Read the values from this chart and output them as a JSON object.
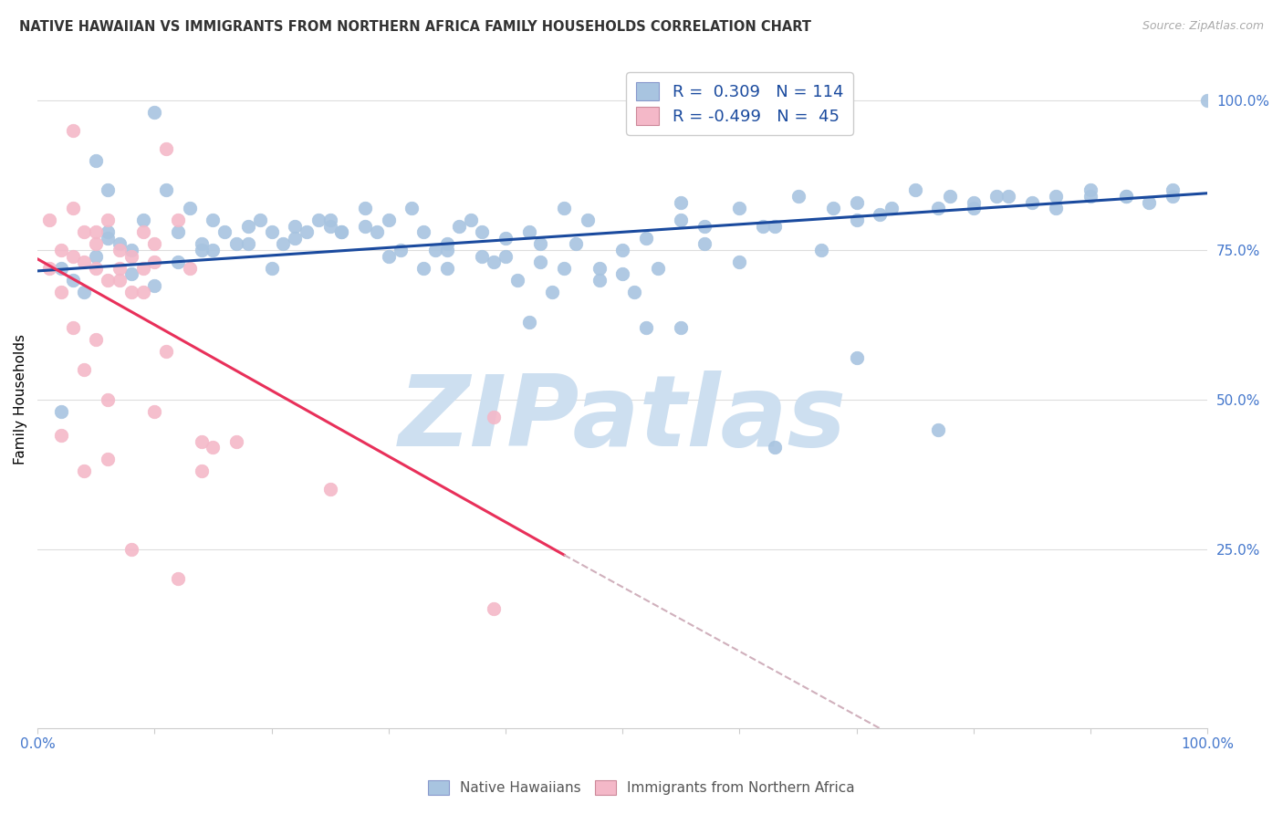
{
  "title": "NATIVE HAWAIIAN VS IMMIGRANTS FROM NORTHERN AFRICA FAMILY HOUSEHOLDS CORRELATION CHART",
  "source": "Source: ZipAtlas.com",
  "ylabel": "Family Households",
  "ytick_positions": [
    0.25,
    0.5,
    0.75,
    1.0
  ],
  "ytick_labels": [
    "25.0%",
    "50.0%",
    "75.0%",
    "100.0%"
  ],
  "xtick_positions": [
    0.0,
    0.1,
    0.2,
    0.3,
    0.4,
    0.5,
    0.6,
    0.7,
    0.8,
    0.9,
    1.0
  ],
  "blue_scatter_x": [
    0.02,
    0.03,
    0.05,
    0.06,
    0.04,
    0.07,
    0.08,
    0.06,
    0.1,
    0.09,
    0.12,
    0.11,
    0.13,
    0.15,
    0.14,
    0.16,
    0.18,
    0.17,
    0.2,
    0.19,
    0.22,
    0.21,
    0.24,
    0.23,
    0.25,
    0.26,
    0.28,
    0.3,
    0.29,
    0.32,
    0.31,
    0.33,
    0.35,
    0.34,
    0.36,
    0.38,
    0.37,
    0.4,
    0.39,
    0.42,
    0.41,
    0.43,
    0.45,
    0.44,
    0.47,
    0.46,
    0.5,
    0.48,
    0.52,
    0.51,
    0.55,
    0.53,
    0.57,
    0.6,
    0.62,
    0.65,
    0.68,
    0.7,
    0.72,
    0.75,
    0.78,
    0.8,
    0.82,
    0.85,
    0.87,
    0.9,
    0.93,
    0.95,
    0.97,
    1.0,
    0.05,
    0.08,
    0.12,
    0.15,
    0.18,
    0.22,
    0.28,
    0.33,
    0.38,
    0.43,
    0.5,
    0.57,
    0.63,
    0.7,
    0.77,
    0.83,
    0.9,
    0.97,
    0.06,
    0.1,
    0.14,
    0.2,
    0.26,
    0.3,
    0.35,
    0.4,
    0.45,
    0.25,
    0.48,
    0.35,
    0.42,
    0.52,
    0.6,
    0.67,
    0.73,
    0.8,
    0.87,
    0.93,
    0.55,
    0.63,
    0.7,
    0.77,
    0.55,
    0.02
  ],
  "blue_scatter_y": [
    0.72,
    0.7,
    0.9,
    0.78,
    0.68,
    0.76,
    0.75,
    0.85,
    0.98,
    0.8,
    0.78,
    0.85,
    0.82,
    0.8,
    0.76,
    0.78,
    0.79,
    0.76,
    0.78,
    0.8,
    0.79,
    0.76,
    0.8,
    0.78,
    0.79,
    0.78,
    0.82,
    0.8,
    0.78,
    0.82,
    0.75,
    0.78,
    0.72,
    0.75,
    0.79,
    0.78,
    0.8,
    0.77,
    0.73,
    0.78,
    0.7,
    0.76,
    0.82,
    0.68,
    0.8,
    0.76,
    0.75,
    0.72,
    0.77,
    0.68,
    0.8,
    0.72,
    0.79,
    0.82,
    0.79,
    0.84,
    0.82,
    0.83,
    0.81,
    0.85,
    0.84,
    0.82,
    0.84,
    0.83,
    0.82,
    0.85,
    0.84,
    0.83,
    0.84,
    1.0,
    0.74,
    0.71,
    0.73,
    0.75,
    0.76,
    0.77,
    0.79,
    0.72,
    0.74,
    0.73,
    0.71,
    0.76,
    0.79,
    0.8,
    0.82,
    0.84,
    0.84,
    0.85,
    0.77,
    0.69,
    0.75,
    0.72,
    0.78,
    0.74,
    0.76,
    0.74,
    0.72,
    0.8,
    0.7,
    0.75,
    0.63,
    0.62,
    0.73,
    0.75,
    0.82,
    0.83,
    0.84,
    0.84,
    0.83,
    0.42,
    0.57,
    0.45,
    0.62,
    0.48
  ],
  "pink_scatter_x": [
    0.01,
    0.01,
    0.02,
    0.02,
    0.03,
    0.03,
    0.04,
    0.04,
    0.05,
    0.05,
    0.06,
    0.06,
    0.07,
    0.07,
    0.08,
    0.08,
    0.09,
    0.09,
    0.1,
    0.1,
    0.11,
    0.12,
    0.13,
    0.03,
    0.05,
    0.07,
    0.09,
    0.11,
    0.14,
    0.04,
    0.06,
    0.15,
    0.17,
    0.39,
    0.02,
    0.08,
    0.12,
    0.04,
    0.06,
    0.1,
    0.14,
    0.05,
    0.39,
    0.25,
    0.03
  ],
  "pink_scatter_y": [
    0.72,
    0.8,
    0.75,
    0.68,
    0.74,
    0.82,
    0.73,
    0.78,
    0.76,
    0.72,
    0.7,
    0.8,
    0.72,
    0.75,
    0.74,
    0.68,
    0.72,
    0.78,
    0.73,
    0.76,
    0.92,
    0.8,
    0.72,
    0.62,
    0.6,
    0.7,
    0.68,
    0.58,
    0.43,
    0.38,
    0.4,
    0.42,
    0.43,
    0.47,
    0.44,
    0.25,
    0.2,
    0.55,
    0.5,
    0.48,
    0.38,
    0.78,
    0.15,
    0.35,
    0.95
  ],
  "blue_line": [
    0.0,
    0.715,
    1.0,
    0.845
  ],
  "pink_line_solid": [
    0.0,
    0.735,
    0.45,
    0.24
  ],
  "pink_line_dash": [
    0.45,
    0.24,
    0.85,
    -0.19
  ],
  "watermark": "ZIPatlas",
  "blue_color": "#a8c4e0",
  "pink_color": "#f4b8c8",
  "blue_line_color": "#1a4a9e",
  "pink_line_color": "#e8305a",
  "pink_dash_color": "#d0b0bc",
  "legend_blue": "R =  0.309   N = 114",
  "legend_pink": "R = -0.499   N =  45",
  "grid_color": "#dddddd",
  "title_color": "#333333",
  "axis_tick_color": "#4477cc",
  "source_color": "#aaaaaa",
  "watermark_color": "#cddff0",
  "xlim": [
    0.0,
    1.0
  ],
  "ylim": [
    -0.05,
    1.05
  ]
}
